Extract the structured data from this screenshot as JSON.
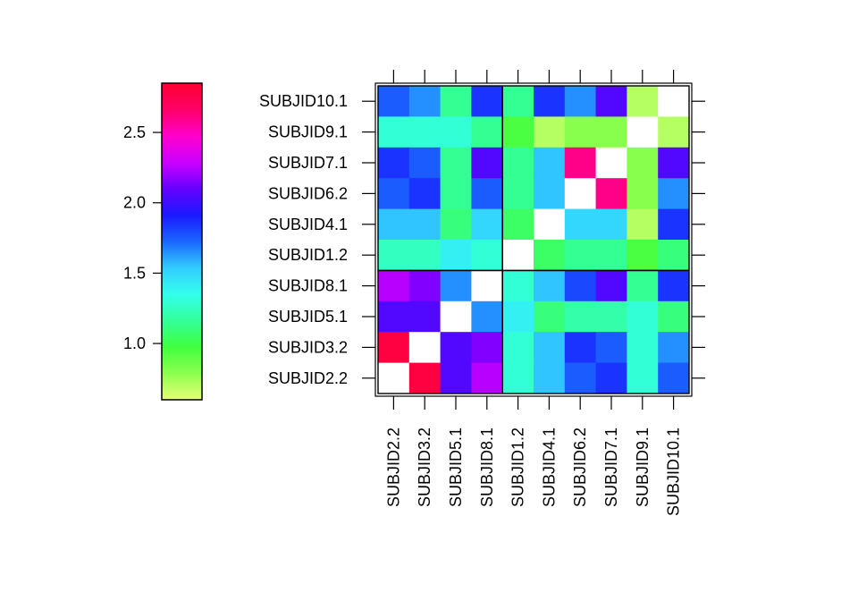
{
  "chart_data": {
    "type": "heatmap",
    "title": "",
    "xlabel": "",
    "ylabel": "",
    "x_categories": [
      "SUBJID2.2",
      "SUBJID3.2",
      "SUBJID5.1",
      "SUBJID8.1",
      "SUBJID1.2",
      "SUBJID4.1",
      "SUBJID6.2",
      "SUBJID7.1",
      "SUBJID9.1",
      "SUBJID10.1"
    ],
    "y_categories_top_to_bottom": [
      "SUBJID10.1",
      "SUBJID9.1",
      "SUBJID7.1",
      "SUBJID6.2",
      "SUBJID4.1",
      "SUBJID1.2",
      "SUBJID8.1",
      "SUBJID5.1",
      "SUBJID3.2",
      "SUBJID2.2"
    ],
    "values": [
      [
        1.75,
        1.65,
        1.15,
        1.85,
        1.15,
        1.85,
        1.65,
        2.05,
        0.7,
        null
      ],
      [
        1.3,
        1.3,
        1.3,
        1.15,
        0.95,
        0.7,
        0.8,
        0.8,
        null,
        0.7
      ],
      [
        1.85,
        1.75,
        1.15,
        2.05,
        1.15,
        1.55,
        2.6,
        null,
        0.8,
        2.05
      ],
      [
        1.75,
        1.85,
        1.15,
        1.75,
        1.15,
        1.55,
        null,
        2.6,
        0.8,
        1.65
      ],
      [
        1.55,
        1.55,
        1.1,
        1.5,
        1.05,
        null,
        1.5,
        1.5,
        0.7,
        1.85
      ],
      [
        1.25,
        1.25,
        1.4,
        1.3,
        null,
        1.05,
        1.15,
        1.15,
        0.95,
        1.1
      ],
      [
        2.25,
        2.15,
        1.65,
        null,
        1.3,
        1.55,
        1.8,
        2.05,
        1.15,
        1.85
      ],
      [
        2.05,
        2.05,
        null,
        1.65,
        1.4,
        1.1,
        1.2,
        1.2,
        1.3,
        1.1
      ],
      [
        2.8,
        null,
        2.05,
        2.15,
        1.3,
        1.55,
        1.85,
        1.75,
        1.3,
        1.65
      ],
      [
        null,
        2.8,
        2.05,
        2.25,
        1.3,
        1.55,
        1.75,
        1.85,
        1.3,
        1.75
      ]
    ],
    "color_scale": {
      "range": [
        0.6,
        2.85
      ],
      "ticks": [
        "1.0",
        "1.5",
        "2.0",
        "2.5"
      ],
      "stops": [
        "#e6ff7a",
        "#8cff4d",
        "#40ff40",
        "#33ff99",
        "#33ffee",
        "#33ccff",
        "#1a66ff",
        "#1a1aff",
        "#6600ff",
        "#cc00ff",
        "#ff00cc",
        "#ff0066",
        "#ff0033"
      ],
      "missing_color": "#ffffff",
      "legend_position": "left"
    },
    "block_split_after": 4
  }
}
